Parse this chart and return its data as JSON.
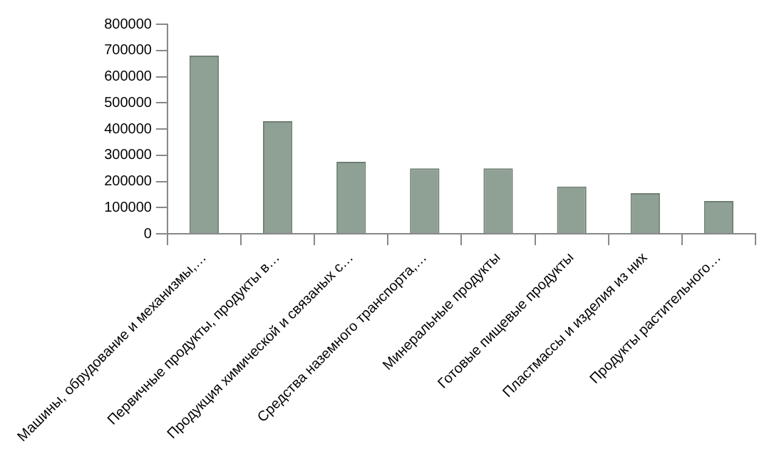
{
  "chart_data": {
    "type": "bar",
    "categories": [
      "Машины, обрудование и механизмы,…",
      "Первичные продукты, продукты в…",
      "Продукция химической и связаных с…",
      "Средства наземного транспорта,…",
      "Минеральные продукты",
      "Готовые пищевые продукты",
      "Пластмассы и изделия из них",
      "Продукты растительного…"
    ],
    "values": [
      680000,
      430000,
      275000,
      250000,
      250000,
      180000,
      155000,
      125000
    ],
    "color": "#8fa094",
    "ylim": [
      0,
      800000
    ],
    "yticks": [
      0,
      100000,
      200000,
      300000,
      400000,
      500000,
      600000,
      700000,
      800000
    ]
  }
}
